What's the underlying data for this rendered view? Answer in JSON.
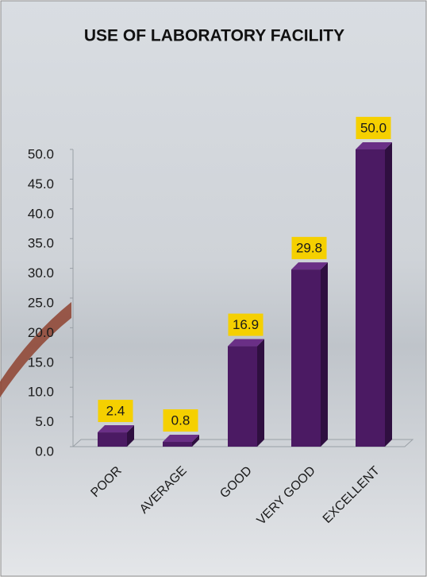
{
  "chart_data": {
    "type": "bar3d",
    "title": "USE OF LABORATORY FACILITY",
    "categories": [
      "POOR",
      "AVERAGE",
      "GOOD",
      "VERY GOOD",
      "EXCELLENT"
    ],
    "values": [
      2.4,
      0.8,
      16.9,
      29.8,
      50.0
    ],
    "value_labels": [
      "2.4",
      "0.8",
      "16.9",
      "29.8",
      "50.0"
    ],
    "color": "#4b1a63",
    "ylim": [
      0,
      50
    ],
    "yticks": [
      {
        "value": 0,
        "label": "0.0"
      },
      {
        "value": 5,
        "label": "5.0"
      },
      {
        "value": 10,
        "label": "10.0"
      },
      {
        "value": 15,
        "label": "15.0"
      },
      {
        "value": 20,
        "label": "20.0"
      },
      {
        "value": 25,
        "label": "25.0"
      },
      {
        "value": 30,
        "label": "30.0"
      },
      {
        "value": 35,
        "label": "35.0"
      },
      {
        "value": 40,
        "label": "40.0"
      },
      {
        "value": 45,
        "label": "45.0"
      },
      {
        "value": 50,
        "label": "50.0"
      }
    ]
  }
}
